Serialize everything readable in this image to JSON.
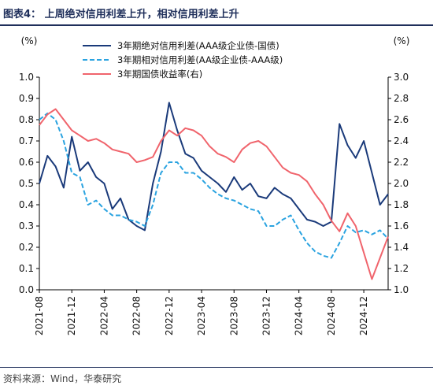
{
  "header": {
    "title": "图表4：   上周绝对信用利差上升，相对信用利差上升"
  },
  "footer": {
    "source": "资料来源：Wind，华泰研究"
  },
  "chart_data": {
    "type": "line",
    "title": "上周绝对信用利差上升，相对信用利差上升",
    "left_unit": "(%)",
    "right_unit": "(%)",
    "ylim_left": [
      0.0,
      1.0
    ],
    "ylim_right": [
      1.0,
      3.0
    ],
    "yticks_left": [
      "0.0",
      "0.1",
      "0.2",
      "0.3",
      "0.4",
      "0.5",
      "0.6",
      "0.7",
      "0.8",
      "0.9",
      "1.0"
    ],
    "yticks_right": [
      "1.0",
      "1.2",
      "1.4",
      "1.6",
      "1.8",
      "2.0",
      "2.2",
      "2.4",
      "2.6",
      "2.8",
      "3.0"
    ],
    "xticks": [
      "2021-08",
      "2021-12",
      "2022-04",
      "2022-08",
      "2022-12",
      "2023-04",
      "2023-08",
      "2023-12",
      "2024-04",
      "2024-08",
      "2024-12"
    ],
    "xlim": [
      "2021-08",
      "2025-03"
    ],
    "legend_position": "top-right",
    "series": [
      {
        "name": "3年期绝对信用利差(AAA级企业债-国债)",
        "axis": "left",
        "color": "#1a3a7a",
        "style": "solid",
        "x": [
          "2021-08",
          "2021-09",
          "2021-10",
          "2021-11",
          "2021-12",
          "2022-01",
          "2022-02",
          "2022-03",
          "2022-04",
          "2022-05",
          "2022-06",
          "2022-07",
          "2022-08",
          "2022-09",
          "2022-10",
          "2022-11",
          "2022-12",
          "2023-01",
          "2023-02",
          "2023-03",
          "2023-04",
          "2023-05",
          "2023-06",
          "2023-07",
          "2023-08",
          "2023-09",
          "2023-10",
          "2023-11",
          "2023-12",
          "2024-01",
          "2024-02",
          "2024-03",
          "2024-04",
          "2024-05",
          "2024-06",
          "2024-07",
          "2024-08",
          "2024-09",
          "2024-10",
          "2024-11",
          "2024-12",
          "2025-01",
          "2025-02",
          "2025-03"
        ],
        "values": [
          0.5,
          0.63,
          0.58,
          0.48,
          0.72,
          0.56,
          0.6,
          0.53,
          0.5,
          0.38,
          0.43,
          0.33,
          0.3,
          0.28,
          0.5,
          0.65,
          0.88,
          0.75,
          0.64,
          0.62,
          0.56,
          0.53,
          0.5,
          0.46,
          0.53,
          0.47,
          0.5,
          0.44,
          0.43,
          0.48,
          0.45,
          0.43,
          0.38,
          0.33,
          0.32,
          0.3,
          0.32,
          0.78,
          0.68,
          0.62,
          0.7,
          0.55,
          0.4,
          0.45
        ]
      },
      {
        "name": "3年期相对信用利差(AA级企业债-AAA级)",
        "axis": "left",
        "color": "#2aa3e0",
        "style": "dashed",
        "x": [
          "2021-08",
          "2021-09",
          "2021-10",
          "2021-11",
          "2021-12",
          "2022-01",
          "2022-02",
          "2022-03",
          "2022-04",
          "2022-05",
          "2022-06",
          "2022-07",
          "2022-08",
          "2022-09",
          "2022-10",
          "2022-11",
          "2022-12",
          "2023-01",
          "2023-02",
          "2023-03",
          "2023-04",
          "2023-05",
          "2023-06",
          "2023-07",
          "2023-08",
          "2023-09",
          "2023-10",
          "2023-11",
          "2023-12",
          "2024-01",
          "2024-02",
          "2024-03",
          "2024-04",
          "2024-05",
          "2024-06",
          "2024-07",
          "2024-08",
          "2024-09",
          "2024-10",
          "2024-11",
          "2024-12",
          "2025-01",
          "2025-02",
          "2025-03"
        ],
        "values": [
          0.8,
          0.83,
          0.8,
          0.7,
          0.55,
          0.53,
          0.4,
          0.42,
          0.38,
          0.35,
          0.35,
          0.33,
          0.32,
          0.3,
          0.4,
          0.55,
          0.6,
          0.6,
          0.55,
          0.55,
          0.52,
          0.48,
          0.45,
          0.43,
          0.42,
          0.4,
          0.38,
          0.37,
          0.3,
          0.3,
          0.33,
          0.35,
          0.28,
          0.22,
          0.18,
          0.16,
          0.15,
          0.22,
          0.3,
          0.27,
          0.28,
          0.26,
          0.28,
          0.24
        ]
      },
      {
        "name": "3年期国债收益率(右)",
        "axis": "right",
        "color": "#f0646c",
        "style": "solid",
        "x": [
          "2021-08",
          "2021-09",
          "2021-10",
          "2021-11",
          "2021-12",
          "2022-01",
          "2022-02",
          "2022-03",
          "2022-04",
          "2022-05",
          "2022-06",
          "2022-07",
          "2022-08",
          "2022-09",
          "2022-10",
          "2022-11",
          "2022-12",
          "2023-01",
          "2023-02",
          "2023-03",
          "2023-04",
          "2023-05",
          "2023-06",
          "2023-07",
          "2023-08",
          "2023-09",
          "2023-10",
          "2023-11",
          "2023-12",
          "2024-01",
          "2024-02",
          "2024-03",
          "2024-04",
          "2024-05",
          "2024-06",
          "2024-07",
          "2024-08",
          "2024-09",
          "2024-10",
          "2024-11",
          "2024-12",
          "2025-01",
          "2025-02",
          "2025-03"
        ],
        "values": [
          2.55,
          2.65,
          2.7,
          2.6,
          2.5,
          2.45,
          2.4,
          2.42,
          2.38,
          2.32,
          2.3,
          2.28,
          2.2,
          2.22,
          2.25,
          2.4,
          2.5,
          2.45,
          2.52,
          2.5,
          2.45,
          2.35,
          2.28,
          2.25,
          2.2,
          2.32,
          2.38,
          2.4,
          2.35,
          2.25,
          2.15,
          2.1,
          2.08,
          2.02,
          1.9,
          1.8,
          1.65,
          1.55,
          1.72,
          1.6,
          1.35,
          1.1,
          1.3,
          1.5
        ]
      }
    ]
  }
}
